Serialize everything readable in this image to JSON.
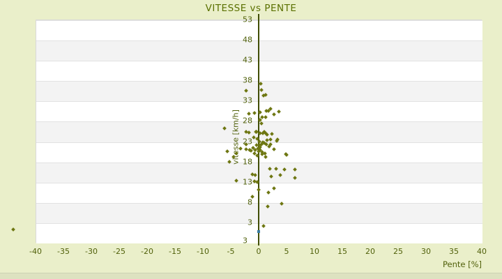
{
  "page": {
    "background": "#eaefca"
  },
  "chart_data": {
    "type": "scatter",
    "title": "VITESSE vs PENTE",
    "xlabel": "Pente [%]",
    "ylabel": "vitesse [km/h]",
    "xlim": [
      -40,
      40
    ],
    "ylim": [
      -2,
      53
    ],
    "x_ticks": [
      -40,
      -35,
      -30,
      -25,
      -20,
      -15,
      -10,
      -5,
      0,
      5,
      10,
      15,
      20,
      25,
      30,
      35,
      40
    ],
    "y_ticks": [
      53,
      48,
      43,
      38,
      33,
      28,
      23,
      18,
      13,
      8,
      3
    ],
    "y_axis_bottom_label": "3",
    "grid": "horizontal-bands-alternating",
    "legend": "none",
    "band_colors": [
      "#ffffff",
      "#f3f3f3"
    ],
    "point_color": "#6e7712",
    "axis_line_color": "#414e06",
    "text_color": "#50600a",
    "title_color": "#5a7000",
    "series": [
      {
        "name": "vitesse vs pente",
        "shape": "diamond",
        "points": [
          [
            -2.2,
            35.5
          ],
          [
            0.4,
            37.2
          ],
          [
            0.5,
            35.6
          ],
          [
            1.2,
            34.5
          ],
          [
            0.9,
            34.3
          ],
          [
            -1.7,
            29.8
          ],
          [
            -0.7,
            29.9
          ],
          [
            0.25,
            30.2
          ],
          [
            1.4,
            30.5
          ],
          [
            1.8,
            30.4
          ],
          [
            2.1,
            31.0
          ],
          [
            2.75,
            29.7
          ],
          [
            3.6,
            30.3
          ],
          [
            0.2,
            28.3
          ],
          [
            0.6,
            29.0
          ],
          [
            0.5,
            27.4
          ],
          [
            1.3,
            29.0
          ],
          [
            -6.1,
            26.2
          ],
          [
            -2.25,
            25.3
          ],
          [
            -1.7,
            25.2
          ],
          [
            -0.5,
            25.3
          ],
          [
            -0.4,
            25.4
          ],
          [
            0.25,
            25.0
          ],
          [
            0.75,
            24.9
          ],
          [
            1.0,
            25.3
          ],
          [
            1.2,
            25.0
          ],
          [
            1.5,
            24.6
          ],
          [
            2.4,
            24.8
          ],
          [
            -0.9,
            23.9
          ],
          [
            -0.2,
            23.6
          ],
          [
            0.75,
            22.7
          ],
          [
            1.5,
            23.2
          ],
          [
            2.1,
            23.5
          ],
          [
            2.1,
            22.3
          ],
          [
            3.2,
            23.1
          ],
          [
            3.4,
            23.4
          ],
          [
            -2.25,
            22.2
          ],
          [
            1.0,
            22.6
          ],
          [
            1.4,
            22.3
          ],
          [
            1.9,
            21.7
          ],
          [
            0.15,
            23.0
          ],
          [
            0.45,
            22.3
          ],
          [
            -0.35,
            22.1
          ],
          [
            0.1,
            22.0
          ],
          [
            0.3,
            21.6
          ],
          [
            -0.1,
            21.2
          ],
          [
            -3.2,
            21.2
          ],
          [
            -5.6,
            20.5
          ],
          [
            -4.0,
            20.0
          ],
          [
            -1.4,
            20.7
          ],
          [
            -1.0,
            21.4
          ],
          [
            -1.6,
            20.8
          ],
          [
            -0.8,
            20.0
          ],
          [
            -0.6,
            20.9
          ],
          [
            -0.2,
            19.4
          ],
          [
            0.0,
            20.6
          ],
          [
            0.2,
            20.9
          ],
          [
            0.6,
            20.3
          ],
          [
            0.6,
            19.9
          ],
          [
            1.1,
            20.0
          ],
          [
            1.2,
            19.2
          ],
          [
            2.8,
            21.0
          ],
          [
            4.9,
            19.9
          ],
          [
            5.0,
            19.7
          ],
          [
            -2.2,
            21.0
          ],
          [
            -5.25,
            18.0
          ],
          [
            -4.5,
            19.2
          ],
          [
            2.0,
            16.3
          ],
          [
            3.1,
            16.3
          ],
          [
            4.6,
            16.1
          ],
          [
            6.5,
            16.0
          ],
          [
            -4.0,
            13.3
          ],
          [
            -1.1,
            14.9
          ],
          [
            -0.6,
            14.6
          ],
          [
            -0.75,
            13.2
          ],
          [
            -0.3,
            12.9
          ],
          [
            2.25,
            14.3
          ],
          [
            3.9,
            14.7
          ],
          [
            6.5,
            14.0
          ],
          [
            -1.1,
            9.3
          ],
          [
            0.0,
            11.1
          ],
          [
            1.8,
            10.4
          ],
          [
            2.7,
            11.4
          ],
          [
            1.6,
            6.9
          ],
          [
            4.1,
            7.7
          ],
          [
            0.9,
            2.2
          ]
        ]
      }
    ],
    "special_points": [
      {
        "name": "highlight-point",
        "x": 0,
        "y": 0.8,
        "shape": "square",
        "color": "#3a7da3"
      },
      {
        "name": "outlier-point",
        "x": -44,
        "y": 1.3,
        "shape": "diamond",
        "color": "#6e7712"
      }
    ]
  }
}
